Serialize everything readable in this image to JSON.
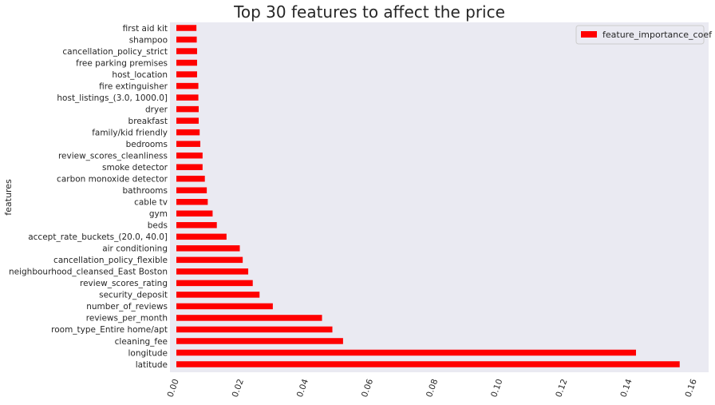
{
  "chart_data": {
    "type": "bar",
    "orientation": "horizontal",
    "title": "Top 30 features to affect the price",
    "ylabel": "features",
    "xlabel": "",
    "xlim": [
      0,
      0.16
    ],
    "xticks": [
      0.0,
      0.02,
      0.04,
      0.06,
      0.08,
      0.1,
      0.12,
      0.14,
      0.16
    ],
    "xtick_labels": [
      "0.00",
      "0.02",
      "0.04",
      "0.06",
      "0.08",
      "0.10",
      "0.12",
      "0.14",
      "0.16"
    ],
    "grid": false,
    "legend_position": "top-right",
    "bar_color": "#ff0000",
    "background_color": "#eaeaf2",
    "categories": [
      "latitude",
      "longitude",
      "cleaning_fee",
      "room_type_Entire home/apt",
      "reviews_per_month",
      "number_of_reviews",
      "security_deposit",
      "review_scores_rating",
      "neighbourhood_cleansed_East Boston",
      "cancellation_policy_flexible",
      "air conditioning",
      "accept_rate_buckets_(20.0, 40.0]",
      "beds",
      "gym",
      "cable tv",
      "bathrooms",
      "carbon monoxide detector",
      "smoke detector",
      "review_scores_cleanliness",
      "bedrooms",
      "family/kid friendly",
      "breakfast",
      "dryer",
      "host_listings_(3.0, 1000.0]",
      "fire extinguisher",
      "host_location",
      "free parking premises",
      "cancellation_policy_strict",
      "shampoo",
      "first aid kit"
    ],
    "series": [
      {
        "name": "feature_importance_coef",
        "values": [
          0.1555,
          0.142,
          0.0515,
          0.0482,
          0.045,
          0.0298,
          0.0257,
          0.0236,
          0.0222,
          0.0205,
          0.0196,
          0.0155,
          0.0125,
          0.0112,
          0.0097,
          0.0094,
          0.0088,
          0.0081,
          0.0081,
          0.0074,
          0.0072,
          0.0069,
          0.0069,
          0.0068,
          0.0068,
          0.0064,
          0.0064,
          0.0064,
          0.0063,
          0.0062
        ]
      }
    ]
  }
}
